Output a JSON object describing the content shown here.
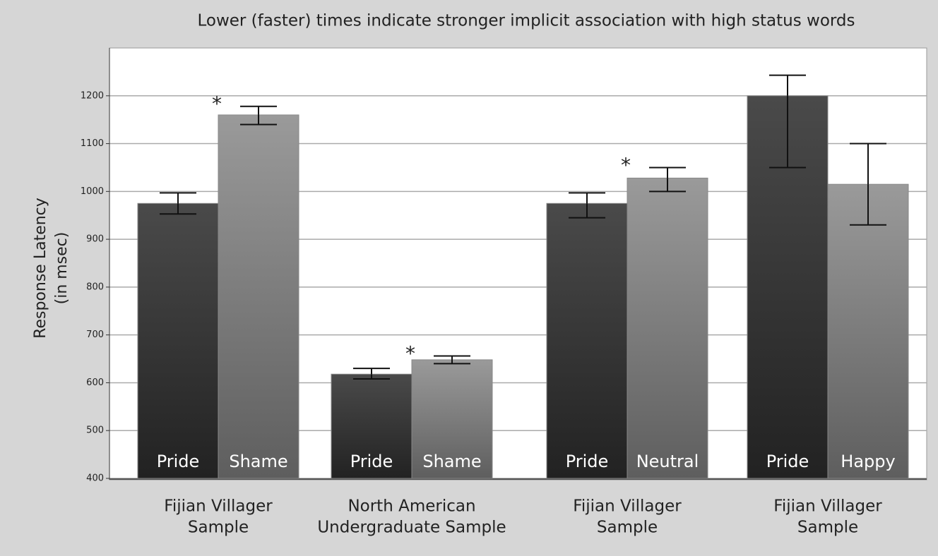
{
  "chart_data": {
    "type": "bar",
    "title": "Lower (faster) times indicate stronger implicit association with high status words",
    "y_label": [
      "Response Latency",
      "(in msec)"
    ],
    "ylim": [
      400,
      1300
    ],
    "yticks": [
      400,
      500,
      600,
      700,
      800,
      900,
      1000,
      1100,
      1200
    ],
    "grid": true,
    "colors": [
      "#2f2f2f",
      "#7c7c7c"
    ],
    "groups": [
      {
        "label": [
          "Fijian Villager",
          "Sample"
        ],
        "bars": [
          {
            "name": "Pride",
            "value": 975,
            "err_minus": 22,
            "err_plus": 22
          },
          {
            "name": "Shame",
            "value": 1160,
            "err_minus": 20,
            "err_plus": 18,
            "marker": "*"
          }
        ]
      },
      {
        "label": [
          "North American",
          "Undergraduate Sample"
        ],
        "bars": [
          {
            "name": "Pride",
            "value": 618,
            "err_minus": 10,
            "err_plus": 12
          },
          {
            "name": "Shame",
            "value": 648,
            "err_minus": 8,
            "err_plus": 8,
            "marker": "*"
          }
        ]
      },
      {
        "label": [
          "Fijian Villager",
          "Sample"
        ],
        "bars": [
          {
            "name": "Pride",
            "value": 975,
            "err_minus": 30,
            "err_plus": 22
          },
          {
            "name": "Neutral",
            "value": 1028,
            "err_minus": 28,
            "err_plus": 22,
            "marker": "*"
          }
        ]
      },
      {
        "label": [
          "Fijian Villager",
          "Sample"
        ],
        "bars": [
          {
            "name": "Pride",
            "value": 1200,
            "err_minus": 150,
            "err_plus": 43
          },
          {
            "name": "Happy",
            "value": 1015,
            "err_minus": 85,
            "err_plus": 85
          }
        ]
      }
    ]
  }
}
